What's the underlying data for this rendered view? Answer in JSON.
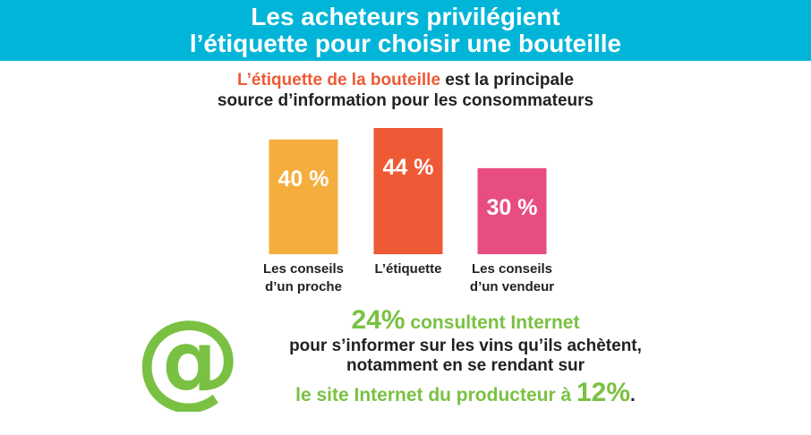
{
  "header": {
    "line1": "Les acheteurs privilégient",
    "line2": "l’étiquette pour choisir une bouteille"
  },
  "subtitle": {
    "highlight": "L’étiquette de la bouteille",
    "rest1": " est la principale",
    "line2": "source d’information pour les consommateurs"
  },
  "chart_data": {
    "type": "bar",
    "categories": [
      "Les conseils d’un proche",
      "L’étiquette",
      "Les conseils d’un vendeur"
    ],
    "category_lines": [
      [
        "Les conseils",
        "d’un proche"
      ],
      [
        "L’étiquette"
      ],
      [
        "Les conseils",
        "d’un vendeur"
      ]
    ],
    "values": [
      40,
      44,
      30
    ],
    "data_labels": [
      "40 %",
      "44 %",
      "30 %"
    ],
    "colors": [
      "#f5ae3e",
      "#ee5a36",
      "#e84d82"
    ],
    "unit": "%",
    "grid": false,
    "legend": "none"
  },
  "internet": {
    "icon": "at-icon",
    "line1_value": "24%",
    "line1_rest": " consultent Internet",
    "line2": "pour s’informer sur les vins qu’ils achètent,",
    "line3": "notamment en se rendant sur",
    "line4_text": "le site Internet du producteur à ",
    "line4_value": "12%",
    "line4_end": ".",
    "color": "#7ac143"
  }
}
